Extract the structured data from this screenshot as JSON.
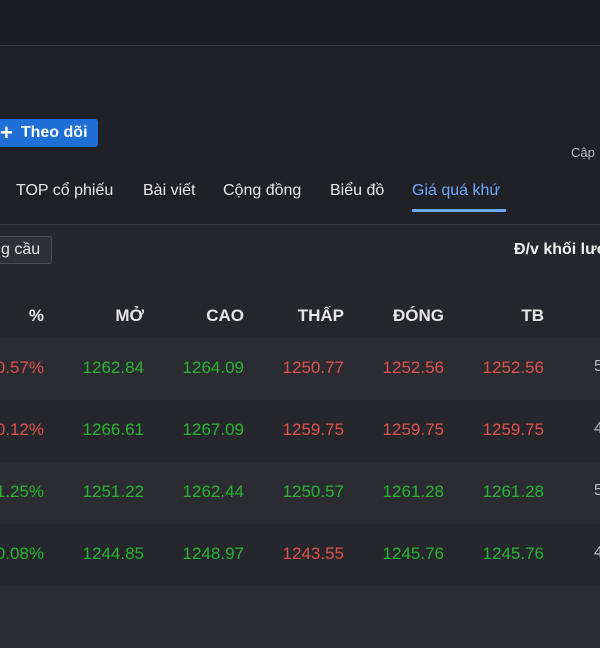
{
  "follow": {
    "icon": "plus-icon",
    "label": "Theo dõi"
  },
  "updated_label": "Cập",
  "tabs": [
    "TOP cổ phiếu",
    "Bài viết",
    "Cộng đồng",
    "Biểu đồ",
    "Giá quá khứ"
  ],
  "active_tab": "Giá quá khứ",
  "filter_chip": "g cầu",
  "unit_label": "Đ/v khối lượ",
  "table": {
    "headers": {
      "pct": "%",
      "open": "MỞ",
      "high": "CAO",
      "low": "THẤP",
      "close": "ĐÓNG",
      "avg": "TB"
    },
    "rows": [
      {
        "pct": "0.57%",
        "open": "1262.84",
        "high": "1264.09",
        "low": "1250.77",
        "close": "1252.56",
        "avg": "1252.56",
        "extra": "5"
      },
      {
        "pct": "0.12%",
        "open": "1266.61",
        "high": "1267.09",
        "low": "1259.75",
        "close": "1259.75",
        "avg": "1259.75",
        "extra": "4"
      },
      {
        "pct": "1.25%",
        "open": "1251.22",
        "high": "1262.44",
        "low": "1250.57",
        "close": "1261.28",
        "avg": "1261.28",
        "extra": "5"
      },
      {
        "pct": "0.08%",
        "open": "1244.85",
        "high": "1248.97",
        "low": "1243.55",
        "close": "1245.76",
        "avg": "1245.76",
        "extra": "4"
      }
    ]
  },
  "colors": {
    "accent": "#1f6fd6",
    "active_tab": "#6fa8ff",
    "up": "#27b52f",
    "down": "#e0514a"
  }
}
